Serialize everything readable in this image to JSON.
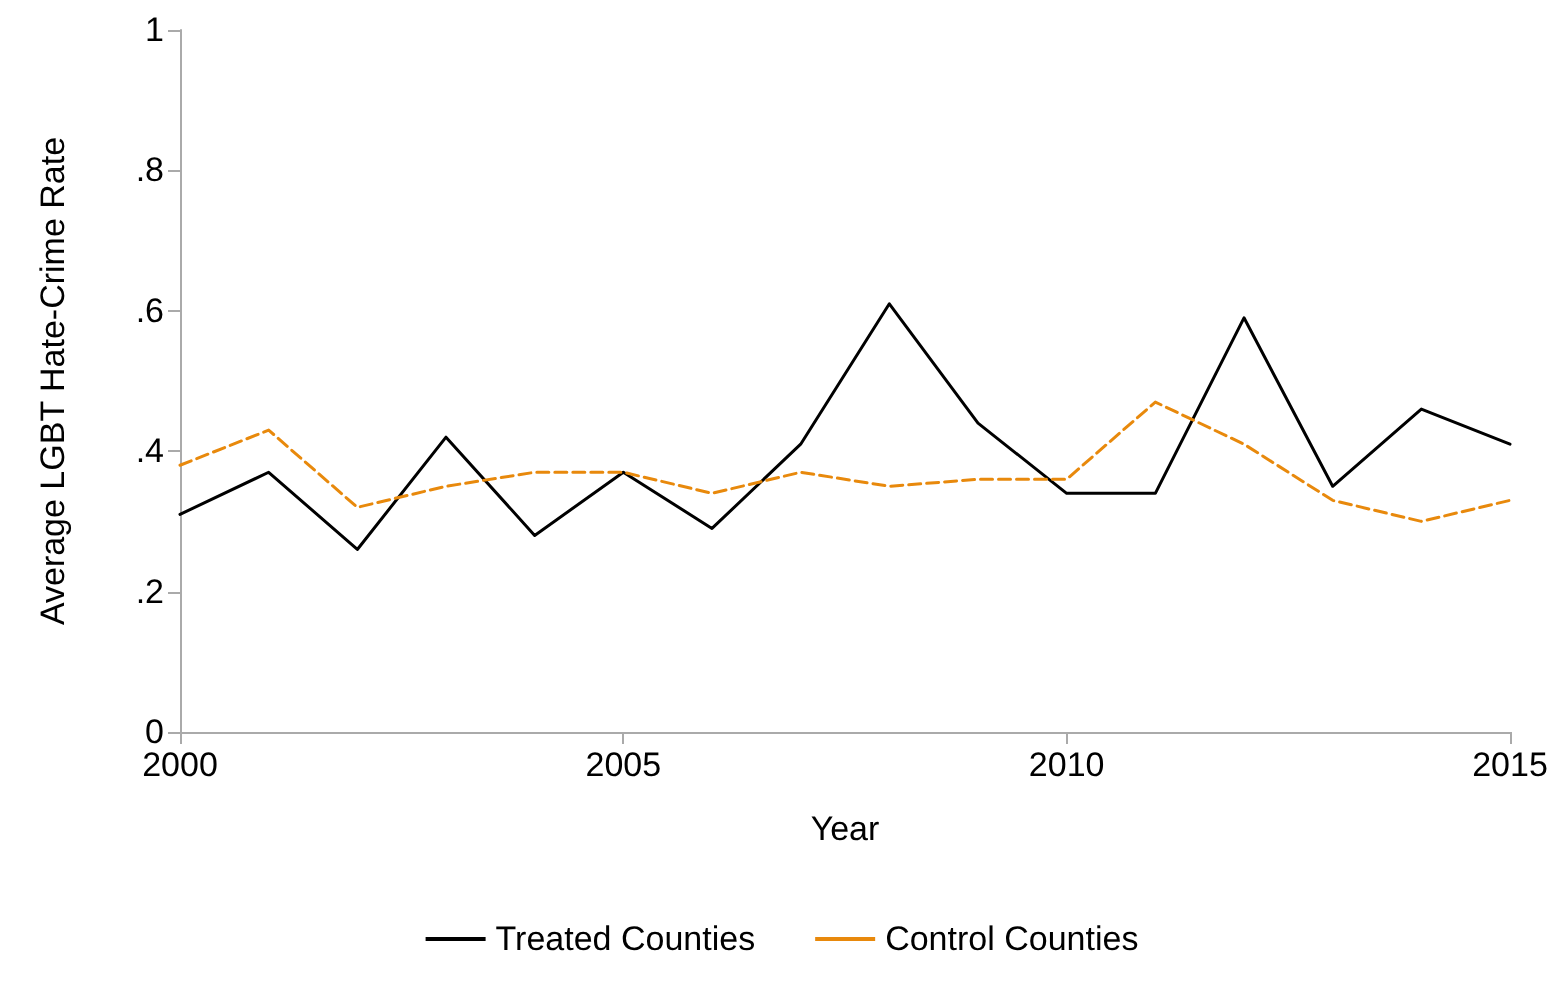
{
  "chart_data": {
    "type": "line",
    "xlabel": "Year",
    "ylabel": "Average LGBT Hate-Crime Rate",
    "x": [
      2000,
      2001,
      2002,
      2003,
      2004,
      2005,
      2006,
      2007,
      2008,
      2009,
      2010,
      2011,
      2012,
      2013,
      2014,
      2015
    ],
    "series": [
      {
        "name": "Treated Counties",
        "color": "#000000",
        "line_style": "solid",
        "values": [
          0.31,
          0.37,
          0.26,
          0.42,
          0.28,
          0.37,
          0.29,
          0.41,
          0.61,
          0.44,
          0.34,
          0.34,
          0.59,
          0.35,
          0.46,
          0.41
        ]
      },
      {
        "name": "Control Counties",
        "color": "#e8890c",
        "line_style": "dashed",
        "values": [
          0.38,
          0.43,
          0.32,
          0.35,
          0.37,
          0.37,
          0.34,
          0.37,
          0.35,
          0.36,
          0.36,
          0.47,
          0.41,
          0.33,
          0.3,
          0.33
        ]
      }
    ],
    "xlim": [
      2000,
      2015
    ],
    "xticks": [
      2000,
      2005,
      2010,
      2015
    ],
    "ylim": [
      0,
      1
    ],
    "yticks": [
      0,
      {
        "value": 0.2,
        "label": ".2"
      },
      {
        "value": 0.4,
        "label": ".4"
      },
      {
        "value": 0.6,
        "label": ".6"
      },
      {
        "value": 0.8,
        "label": ".8"
      },
      1
    ],
    "grid": false,
    "legend": "bottom",
    "marker": "none"
  }
}
